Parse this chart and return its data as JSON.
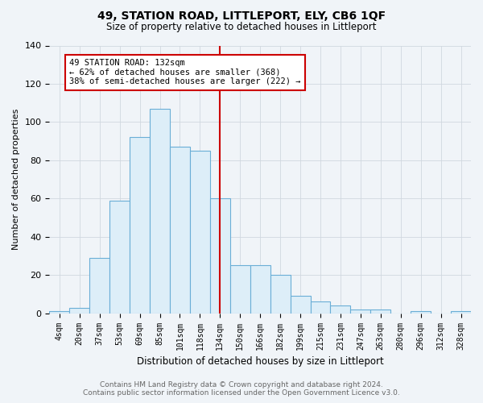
{
  "title": "49, STATION ROAD, LITTLEPORT, ELY, CB6 1QF",
  "subtitle": "Size of property relative to detached houses in Littleport",
  "xlabel": "Distribution of detached houses by size in Littleport",
  "ylabel": "Number of detached properties",
  "footer_line1": "Contains HM Land Registry data © Crown copyright and database right 2024.",
  "footer_line2": "Contains public sector information licensed under the Open Government Licence v3.0.",
  "categories": [
    "4sqm",
    "20sqm",
    "37sqm",
    "53sqm",
    "69sqm",
    "85sqm",
    "101sqm",
    "118sqm",
    "134sqm",
    "150sqm",
    "166sqm",
    "182sqm",
    "199sqm",
    "215sqm",
    "231sqm",
    "247sqm",
    "263sqm",
    "280sqm",
    "296sqm",
    "312sqm",
    "328sqm"
  ],
  "values": [
    1,
    3,
    29,
    59,
    92,
    107,
    87,
    85,
    60,
    25,
    25,
    20,
    9,
    6,
    4,
    2,
    2,
    0,
    1,
    0,
    1
  ],
  "bar_color": "#ddeef8",
  "bar_edge_color": "#6aaed6",
  "vline_x": 8,
  "vline_color": "#cc0000",
  "annotation_text": "49 STATION ROAD: 132sqm\n← 62% of detached houses are smaller (368)\n38% of semi-detached houses are larger (222) →",
  "annotation_box_color": "white",
  "annotation_box_edge_color": "#cc0000",
  "ylim": [
    0,
    140
  ],
  "yticks": [
    0,
    20,
    40,
    60,
    80,
    100,
    120,
    140
  ],
  "grid_color": "#d0d8e0",
  "background_color": "#f0f4f8",
  "plot_bg_color": "#f0f4f8"
}
